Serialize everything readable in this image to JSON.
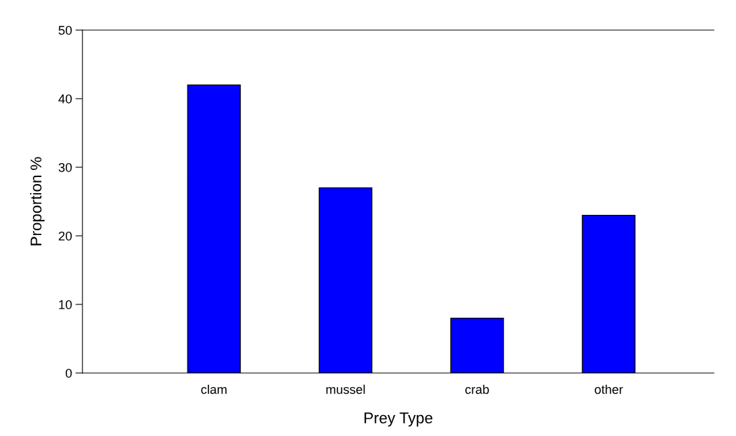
{
  "chart_data": {
    "type": "bar",
    "xlabel": "Prey Type",
    "ylabel": "Proportion %",
    "categories": [
      "clam",
      "mussel",
      "crab",
      "other"
    ],
    "values": [
      42,
      27,
      8,
      23
    ],
    "color": "#0000ff",
    "ylim": [
      0,
      50
    ],
    "yticks": [
      0,
      10,
      20,
      30,
      40,
      50
    ],
    "grid": false,
    "legend": false
  }
}
